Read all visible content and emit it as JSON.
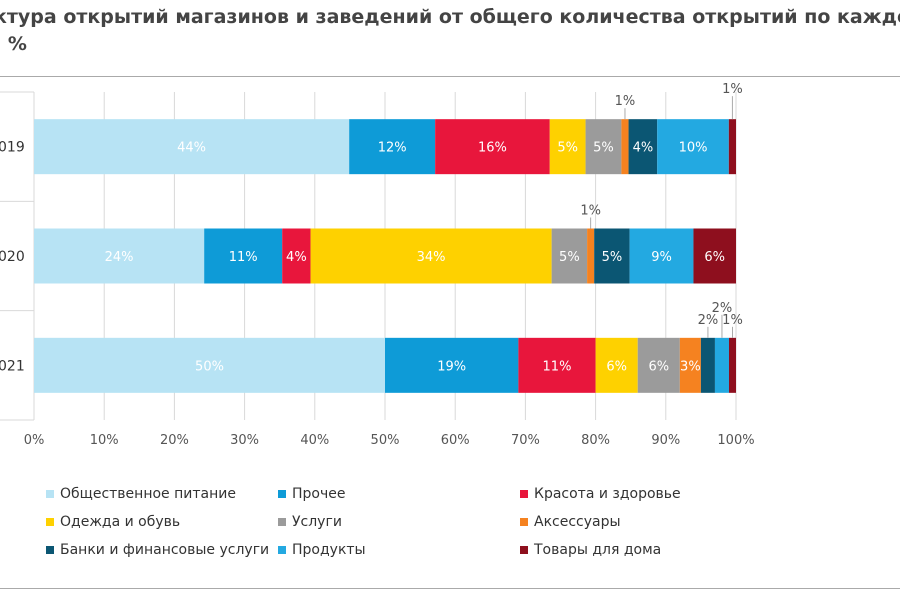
{
  "header": {
    "title_line1": "ктура открытий магазинов и заведений от общего количества открытий по каждо",
    "title_line2": ", %"
  },
  "chart_data": {
    "type": "bar",
    "orientation": "horizontal",
    "stacked": true,
    "categories": [
      "019",
      "020",
      "021"
    ],
    "xlim": [
      0,
      100
    ],
    "xticks": [
      "0%",
      "10%",
      "20%",
      "30%",
      "40%",
      "50%",
      "60%",
      "70%",
      "80%",
      "90%",
      "100%"
    ],
    "grid": true,
    "legend_position": "bottom",
    "series": [
      {
        "name": "Общественное питание",
        "color": "#b7e3f4",
        "values": [
          44,
          24,
          50
        ],
        "labels": [
          "44%",
          "24%",
          "50%"
        ],
        "label_color": "#ffffff"
      },
      {
        "name": "Прочее",
        "color": "#0e9bd7",
        "values": [
          12,
          11,
          19
        ],
        "labels": [
          "12%",
          "11%",
          "19%"
        ],
        "label_color": "#ffffff"
      },
      {
        "name": "Красота и здоровье",
        "color": "#e8163c",
        "values": [
          16,
          4,
          11
        ],
        "labels": [
          "16%",
          "4%",
          "11%"
        ],
        "label_color": "#ffffff"
      },
      {
        "name": "Одежда и обувь",
        "color": "#fed100",
        "values": [
          5,
          34,
          6
        ],
        "labels": [
          "5%",
          "34%",
          "6%"
        ],
        "label_color": "#ffffff"
      },
      {
        "name": "Услуги",
        "color": "#9b9b9b",
        "values": [
          5,
          5,
          6
        ],
        "labels": [
          "5%",
          "5%",
          "6%"
        ],
        "label_color": "#ffffff"
      },
      {
        "name": "Аксессуары",
        "color": "#f58220",
        "values": [
          1,
          1,
          3
        ],
        "labels": [
          "1%",
          "1%",
          "3%"
        ],
        "label_color": "#ffffff"
      },
      {
        "name": "Банки и финансовые услуги",
        "color": "#0b5673",
        "values": [
          4,
          5,
          2
        ],
        "labels": [
          "4%",
          "5%",
          "2%"
        ],
        "label_color": "#ffffff"
      },
      {
        "name": "Продукты",
        "color": "#23a9e1",
        "values": [
          10,
          9,
          2
        ],
        "labels": [
          "10%",
          "9%",
          "2%"
        ],
        "label_color": "#ffffff"
      },
      {
        "name": "Товары для дома",
        "color": "#8e0f1e",
        "values": [
          1,
          6,
          1
        ],
        "labels": [
          "1%",
          "6%",
          "1%"
        ],
        "label_color": "#ffffff"
      }
    ]
  }
}
